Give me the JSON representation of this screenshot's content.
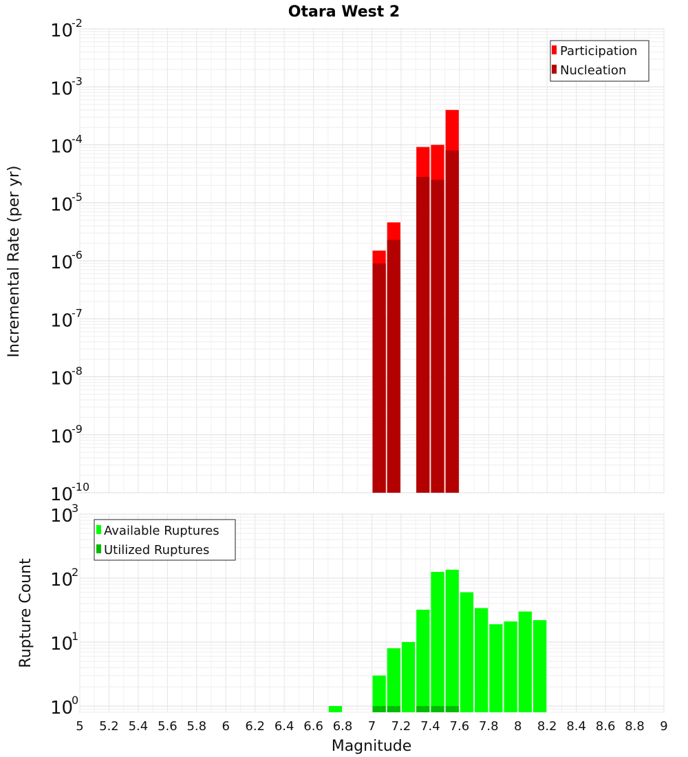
{
  "chart_data": [
    {
      "panel": "top",
      "type": "bar",
      "title": "Otara West 2",
      "xlabel": "",
      "ylabel": "Incremental Rate (per yr)",
      "xlim": [
        5,
        9
      ],
      "ylim": [
        1e-10,
        0.01
      ],
      "yscale": "log",
      "grid": true,
      "legend_position": "top-right",
      "bin_width": 0.1,
      "x": [
        7.05,
        7.15,
        7.35,
        7.45,
        7.55
      ],
      "series": [
        {
          "name": "Participation",
          "color": "#ff0000",
          "values": [
            1.5e-06,
            4.6e-06,
            9.2e-05,
            0.0001,
            0.0004
          ]
        },
        {
          "name": "Nucleation",
          "color": "#b30000",
          "values": [
            9e-07,
            2.3e-06,
            2.8e-05,
            2.5e-05,
            8e-05
          ]
        }
      ],
      "ytick_exponents": [
        -10,
        -9,
        -8,
        -7,
        -6,
        -5,
        -4,
        -3,
        -2
      ]
    },
    {
      "panel": "bottom",
      "type": "bar",
      "title": "",
      "xlabel": "Magnitude",
      "ylabel": "Rupture Count",
      "xlim": [
        5,
        9
      ],
      "ylim": [
        0.8,
        1000
      ],
      "yscale": "log",
      "grid": true,
      "legend_position": "top-left",
      "bin_width": 0.1,
      "x": [
        6.75,
        7.05,
        7.15,
        7.25,
        7.35,
        7.45,
        7.55,
        7.65,
        7.75,
        7.85,
        7.95,
        8.05,
        8.15
      ],
      "series": [
        {
          "name": "Available Ruptures",
          "color": "#00ff00",
          "values": [
            1,
            3,
            8,
            10,
            32,
            125,
            135,
            60,
            34,
            19,
            21,
            30,
            22
          ]
        },
        {
          "name": "Utilized Ruptures",
          "color": "#00bb00",
          "values": [
            0,
            1,
            1,
            0,
            1,
            1,
            1,
            0,
            0,
            0,
            0,
            0,
            0
          ]
        }
      ],
      "ytick_exponents": [
        0,
        1,
        2,
        3
      ],
      "xticks": [
        "5",
        "5.2",
        "5.4",
        "5.6",
        "5.8",
        "6",
        "6.2",
        "6.4",
        "6.6",
        "6.8",
        "7",
        "7.2",
        "7.4",
        "7.6",
        "7.8",
        "8",
        "8.2",
        "8.4",
        "8.6",
        "8.8",
        "9"
      ]
    }
  ]
}
